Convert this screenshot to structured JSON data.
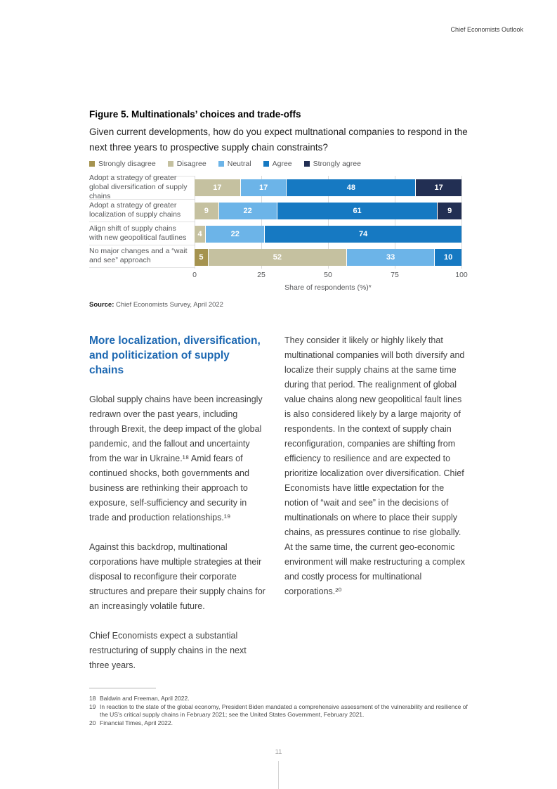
{
  "header": {
    "title": "Chief Economists Outlook"
  },
  "figure": {
    "title": "Figure 5. Multinationals’ choices and trade-offs",
    "question": "Given current developments, how do you expect multnational companies to respond in the next three years to prospective supply chain constraints?",
    "source_label": "Source:",
    "source_text": " Chief Economists Survey, April 2022"
  },
  "chart_data": {
    "type": "bar",
    "orientation": "horizontal",
    "stacked": true,
    "categories": [
      "Adopt a strategy of greater global diversification of supply chains",
      "Adopt a strategy of greater localization of supply chains",
      "Align shift of supply chains with new geopolitical fautlines",
      "No major changes and a “wait and see” approach"
    ],
    "series": [
      {
        "name": "Strongly disagree",
        "color": "#a5934f",
        "values": [
          0,
          0,
          0,
          5
        ]
      },
      {
        "name": "Disagree",
        "color": "#c5c1a0",
        "values": [
          17,
          9,
          4,
          52
        ]
      },
      {
        "name": "Neutral",
        "color": "#6cb4e8",
        "values": [
          17,
          22,
          22,
          33
        ]
      },
      {
        "name": "Agree",
        "color": "#1679c2",
        "values": [
          48,
          61,
          74,
          10
        ]
      },
      {
        "name": "Strongly agree",
        "color": "#222f53",
        "values": [
          17,
          9,
          0,
          0
        ]
      }
    ],
    "x_ticks": [
      0,
      25,
      50,
      75,
      100
    ],
    "xlim": [
      0,
      100
    ],
    "xlabel": "Share of respondents (%)*",
    "legend_position": "top",
    "grid": true
  },
  "article": {
    "heading": "More localization, diversification, and politicization of supply chains",
    "left_paragraphs": [
      "Global supply chains have been increasingly redrawn over the past years, including through Brexit, the deep impact of the global pandemic, and the fallout and uncertainty from the war in Ukraine.¹⁸ Amid fears of continued shocks, both governments and business are rethinking their approach to exposure, self-sufficiency and security in trade and production relationships.¹⁹",
      "Against this backdrop, multinational corporations have multiple strategies at their disposal to reconfigure their corporate structures and prepare their supply chains for an increasingly volatile future.",
      "Chief Economists expect a substantial restructuring of supply chains in the next three years."
    ],
    "right_paragraphs": [
      "They consider it likely or highly likely that multinational companies will both diversify and localize their supply chains at the same time during that period. The realignment of global value chains along new geopolitical fault lines is also considered likely by a large majority of respondents. In the context of supply chain reconfiguration, companies are shifting from efficiency to resilience and are expected to prioritize localization over diversification. Chief Economists have little expectation for the notion of “wait and see” in the decisions of multinationals on where to place their supply chains, as pressures continue to rise globally. At the same time, the current geo-economic environment will make restructuring a complex and costly process for multinational corporations.²⁰"
    ]
  },
  "footnotes": [
    {
      "num": "18",
      "text": "Baldwin and Freeman, April 2022."
    },
    {
      "num": "19",
      "text": "In reaction to the state of the global economy, President Biden mandated a comprehensive assessment of the vulnerability and resilience of the US’s critical supply chains in February 2021; see the United States Government, February 2021."
    },
    {
      "num": "20",
      "text": "Financial Times, April 2022."
    }
  ],
  "page_number": "11",
  "colors": {
    "heading_accent": "#1d68b2",
    "body_text": "#414141",
    "muted_text": "#58595b"
  }
}
